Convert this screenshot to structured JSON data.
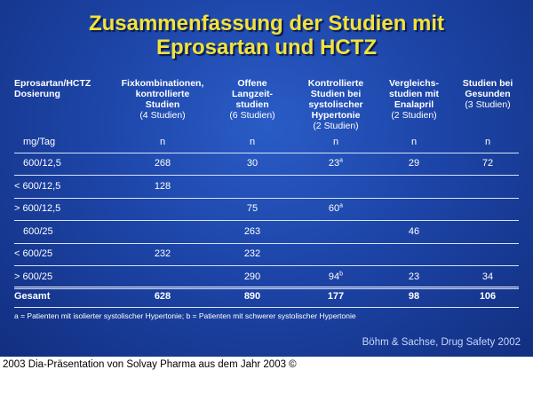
{
  "slide": {
    "title_line1": "Zusammenfassung der Studien mit",
    "title_line2": "Eprosartan und HCTZ",
    "columns": [
      {
        "head": "Eprosartan/HCTZ\nDosierung",
        "sub": ""
      },
      {
        "head": "Fixkombinationen,\nkontrollierte\nStudien",
        "sub": "(4 Studien)"
      },
      {
        "head": "Offene\nLangzeit-\nstudien",
        "sub": "(6 Studien)"
      },
      {
        "head": "Kontrollierte\nStudien bei\nsystolischer\nHypertonie",
        "sub": "(2 Studien)"
      },
      {
        "head": "Vergleichs-\nstudien mit\nEnalapril",
        "sub": "(2 Studien)"
      },
      {
        "head": "Studien bei\nGesunden",
        "sub": "(3 Studien)"
      }
    ],
    "unit_row": [
      "mg/Tag",
      "n",
      "n",
      "n",
      "n",
      "n"
    ],
    "rows": [
      {
        "label": "600/12,5",
        "cells": [
          "268",
          "30",
          "23",
          "29",
          "72"
        ],
        "sup": [
          "",
          "",
          "a",
          "",
          ""
        ]
      },
      {
        "label": "< 600/12,5",
        "cells": [
          "128",
          "",
          "",
          "",
          ""
        ],
        "sup": [
          "",
          "",
          "",
          "",
          ""
        ]
      },
      {
        "label": "> 600/12,5",
        "cells": [
          "",
          "75",
          "60",
          "",
          ""
        ],
        "sup": [
          "",
          "",
          "a",
          "",
          ""
        ]
      },
      {
        "label": "600/25",
        "cells": [
          "",
          "263",
          "",
          "46",
          ""
        ],
        "sup": [
          "",
          "",
          "",
          "",
          ""
        ]
      },
      {
        "label": "< 600/25",
        "cells": [
          "232",
          "232",
          "",
          "",
          ""
        ],
        "sup": [
          "",
          "",
          "",
          "",
          ""
        ]
      },
      {
        "label": "> 600/25",
        "cells": [
          "",
          "290",
          "94",
          "23",
          "34"
        ],
        "sup": [
          "",
          "",
          "b",
          "",
          ""
        ]
      }
    ],
    "total": {
      "label": "Gesamt",
      "cells": [
        "628",
        "890",
        "177",
        "98",
        "106"
      ]
    },
    "footnote": "a = Patienten mit isolierter systolischer Hypertonie; b = Patienten mit schwerer systolischer Hypertonie",
    "source": "Böhm & Sachse, Drug Safety 2002",
    "colors": {
      "title": "#f2e23a",
      "background": "#1d45a8",
      "text": "#ffffff"
    }
  },
  "caption": "2003 Dia-Präsentation von Solvay Pharma aus dem Jahr 2003 ©"
}
